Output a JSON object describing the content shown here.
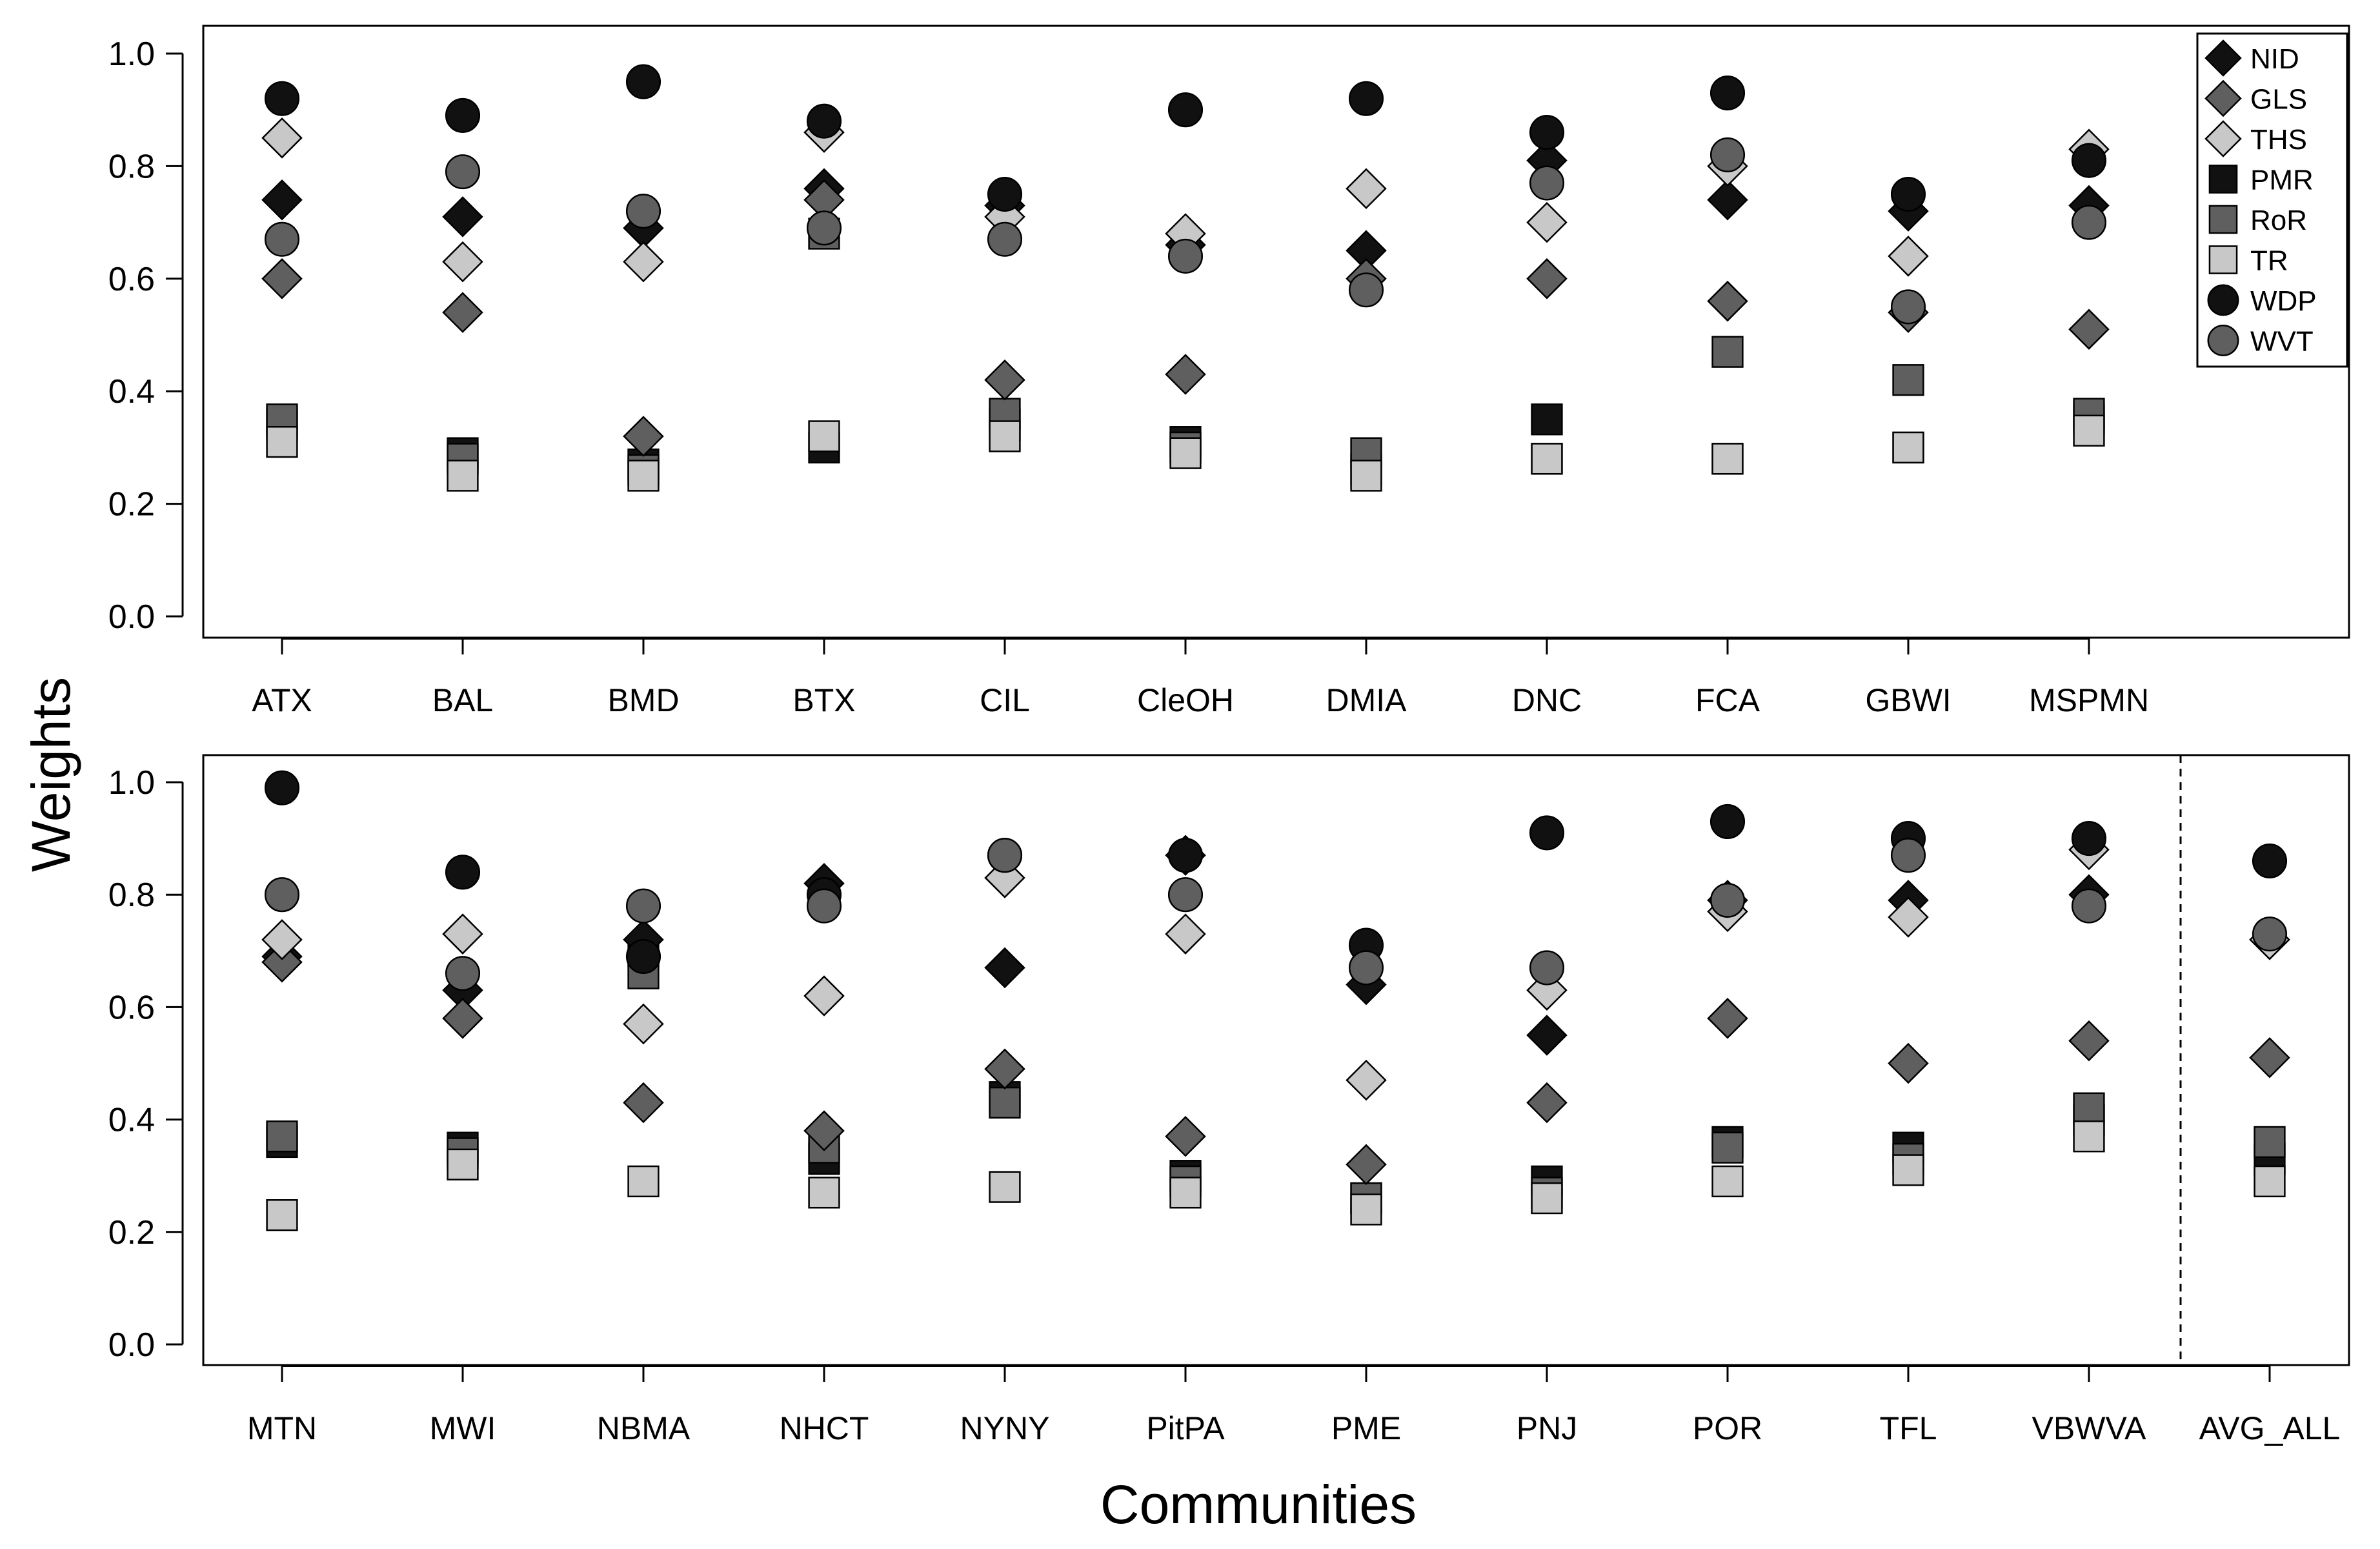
{
  "chart_data": {
    "type": "scatter",
    "ylabel": "Weights",
    "xlabel": "Communities",
    "ylim": [
      0,
      1
    ],
    "yticks": [
      0.0,
      0.2,
      0.4,
      0.6,
      0.8,
      1.0
    ],
    "ytick_labels": [
      "0.0",
      "0.2",
      "0.4",
      "0.6",
      "0.8",
      "1.0"
    ],
    "legend": {
      "position": "top-right",
      "entries": [
        {
          "key": "NID",
          "label": "NID",
          "shape": "diamond",
          "color": "#111111"
        },
        {
          "key": "GLS",
          "label": "GLS",
          "shape": "diamond",
          "color": "#5f5f5f"
        },
        {
          "key": "THS",
          "label": "THS",
          "shape": "diamond",
          "color": "#c8c8c8"
        },
        {
          "key": "PMR",
          "label": "PMR",
          "shape": "square",
          "color": "#111111"
        },
        {
          "key": "RoR",
          "label": "RoR",
          "shape": "square",
          "color": "#5f5f5f"
        },
        {
          "key": "TR",
          "label": "TR",
          "shape": "square",
          "color": "#c8c8c8"
        },
        {
          "key": "WDP",
          "label": "WDP",
          "shape": "circle",
          "color": "#111111"
        },
        {
          "key": "WVT",
          "label": "WVT",
          "shape": "circle",
          "color": "#5f5f5f"
        }
      ]
    },
    "draw_order": [
      "PMR",
      "RoR",
      "TR",
      "NID",
      "GLS",
      "THS",
      "WDP",
      "WVT"
    ],
    "panels": [
      {
        "name": "top",
        "categories": [
          "ATX",
          "BAL",
          "BMD",
          "BTX",
          "CIL",
          "CleOH",
          "DMIA",
          "DNC",
          "FCA",
          "GBWI",
          "MSPMN"
        ],
        "series": [
          {
            "name": "NID",
            "values": [
              0.74,
              0.71,
              0.69,
              0.76,
              0.73,
              0.66,
              0.65,
              0.81,
              0.74,
              0.72,
              0.73
            ]
          },
          {
            "name": "GLS",
            "values": [
              0.6,
              0.54,
              0.32,
              0.74,
              0.42,
              0.43,
              0.6,
              0.6,
              0.56,
              0.54,
              0.51
            ]
          },
          {
            "name": "THS",
            "values": [
              0.85,
              0.63,
              0.63,
              0.86,
              0.71,
              0.68,
              0.76,
              0.7,
              0.8,
              0.64,
              0.83
            ]
          },
          {
            "name": "PMR",
            "values": [
              0.34,
              0.29,
              0.27,
              0.3,
              0.34,
              0.31,
              0.26,
              0.35,
              0.28,
              0.3,
              0.35
            ]
          },
          {
            "name": "RoR",
            "values": [
              0.35,
              0.28,
              0.26,
              0.68,
              0.36,
              0.3,
              0.29,
              0.28,
              0.47,
              0.42,
              0.36
            ]
          },
          {
            "name": "TR",
            "values": [
              0.31,
              0.25,
              0.25,
              0.32,
              0.32,
              0.29,
              0.25,
              0.28,
              0.28,
              0.3,
              0.33
            ]
          },
          {
            "name": "WDP",
            "values": [
              0.92,
              0.89,
              0.95,
              0.88,
              0.75,
              0.9,
              0.92,
              0.86,
              0.93,
              0.75,
              0.81
            ]
          },
          {
            "name": "WVT",
            "values": [
              0.67,
              0.79,
              0.72,
              0.69,
              0.67,
              0.64,
              0.58,
              0.77,
              0.82,
              0.55,
              0.7
            ]
          }
        ]
      },
      {
        "name": "bottom",
        "categories": [
          "MTN",
          "MWI",
          "NBMA",
          "NHCT",
          "NYNY",
          "PitPA",
          "PME",
          "PNJ",
          "POR",
          "TFL",
          "VBWVA",
          "AVG_ALL"
        ],
        "separator_after": "VBWVA",
        "series": [
          {
            "name": "NID",
            "values": [
              0.69,
              0.63,
              0.72,
              0.82,
              0.67,
              0.87,
              0.64,
              0.55,
              0.79,
              0.79,
              0.8,
              0.72
            ]
          },
          {
            "name": "GLS",
            "values": [
              0.68,
              0.58,
              0.43,
              0.38,
              0.49,
              0.37,
              0.32,
              0.43,
              0.58,
              0.5,
              0.54,
              0.51
            ]
          },
          {
            "name": "THS",
            "values": [
              0.72,
              0.73,
              0.57,
              0.62,
              0.83,
              0.73,
              0.47,
              0.63,
              0.77,
              0.76,
              0.88,
              0.72
            ]
          },
          {
            "name": "PMR",
            "values": [
              0.36,
              0.35,
              0.7,
              0.33,
              0.44,
              0.3,
              0.26,
              0.29,
              0.36,
              0.35,
              0.4,
              0.33
            ]
          },
          {
            "name": "RoR",
            "values": [
              0.37,
              0.34,
              0.66,
              0.35,
              0.43,
              0.29,
              0.26,
              0.27,
              0.35,
              0.33,
              0.42,
              0.36
            ]
          },
          {
            "name": "TR",
            "values": [
              0.23,
              0.32,
              0.29,
              0.27,
              0.28,
              0.27,
              0.24,
              0.26,
              0.29,
              0.31,
              0.37,
              0.29
            ]
          },
          {
            "name": "WDP",
            "values": [
              0.99,
              0.84,
              0.69,
              0.8,
              0.87,
              0.87,
              0.71,
              0.91,
              0.93,
              0.9,
              0.9,
              0.86
            ]
          },
          {
            "name": "WVT",
            "values": [
              0.8,
              0.66,
              0.78,
              0.78,
              0.87,
              0.8,
              0.67,
              0.67,
              0.79,
              0.87,
              0.78,
              0.73
            ]
          }
        ]
      }
    ]
  }
}
